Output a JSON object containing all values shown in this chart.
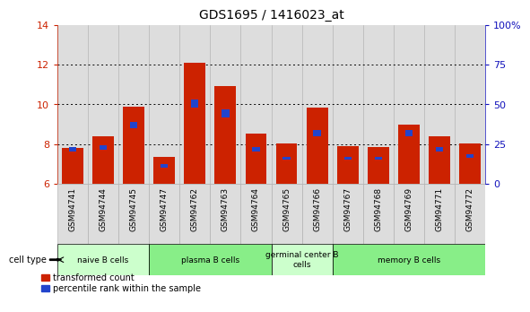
{
  "title": "GDS1695 / 1416023_at",
  "samples": [
    "GSM94741",
    "GSM94744",
    "GSM94745",
    "GSM94747",
    "GSM94762",
    "GSM94763",
    "GSM94764",
    "GSM94765",
    "GSM94766",
    "GSM94767",
    "GSM94768",
    "GSM94769",
    "GSM94771",
    "GSM94772"
  ],
  "red_values": [
    7.8,
    8.4,
    9.9,
    7.35,
    12.1,
    10.9,
    8.55,
    8.05,
    9.85,
    7.9,
    7.85,
    9.0,
    8.4,
    8.05
  ],
  "blue_tops": [
    7.62,
    7.72,
    8.78,
    6.84,
    9.84,
    9.36,
    7.62,
    7.22,
    8.4,
    7.22,
    7.22,
    8.4,
    7.62,
    7.32
  ],
  "blue_heights": [
    0.22,
    0.22,
    0.32,
    0.14,
    0.42,
    0.38,
    0.22,
    0.14,
    0.32,
    0.14,
    0.14,
    0.32,
    0.22,
    0.18
  ],
  "ylim_left": [
    6,
    14
  ],
  "ylim_right": [
    0,
    100
  ],
  "yticks_left": [
    6,
    8,
    10,
    12,
    14
  ],
  "yticks_right": [
    0,
    25,
    50,
    75,
    100
  ],
  "ytick_labels_right": [
    "0",
    "25",
    "50",
    "75",
    "100%"
  ],
  "bar_width": 0.7,
  "red_color": "#cc2200",
  "blue_color": "#2244cc",
  "cell_groups": [
    {
      "label": "naive B cells",
      "start": 0,
      "end": 3,
      "color": "#ccffcc"
    },
    {
      "label": "plasma B cells",
      "start": 3,
      "end": 7,
      "color": "#88ee88"
    },
    {
      "label": "germinal center B\ncells",
      "start": 7,
      "end": 9,
      "color": "#ccffcc"
    },
    {
      "label": "memory B cells",
      "start": 9,
      "end": 14,
      "color": "#88ee88"
    }
  ],
  "legend_red": "transformed count",
  "legend_blue": "percentile rank within the sample",
  "tick_label_color_left": "#cc2200",
  "tick_label_color_right": "#1111bb",
  "base_value": 6.0,
  "col_bg": "#dddddd",
  "col_border": "#aaaaaa"
}
